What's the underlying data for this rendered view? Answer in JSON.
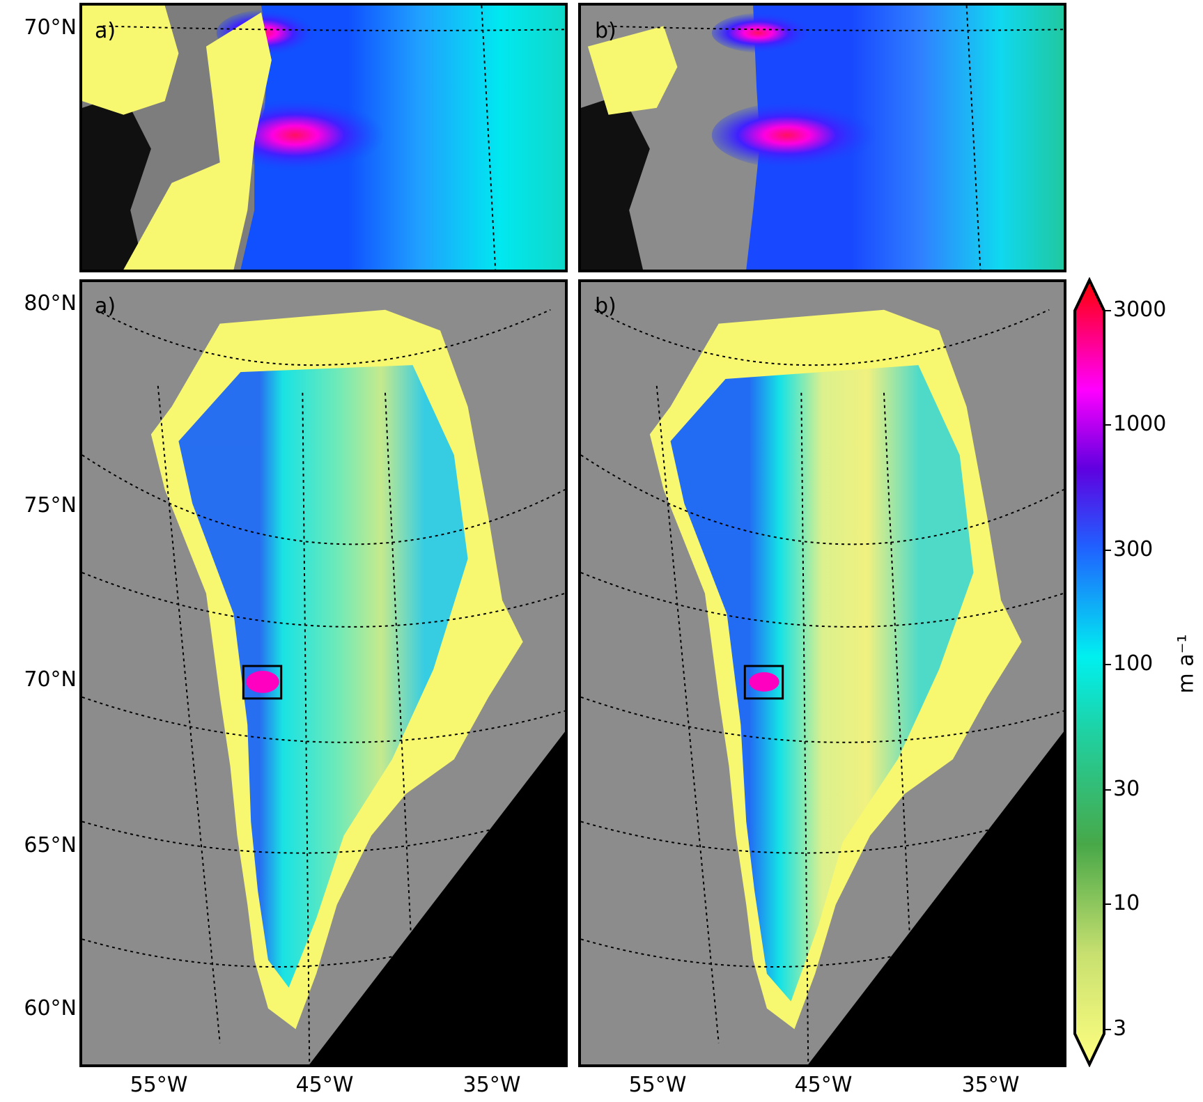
{
  "panels": {
    "top_a": {
      "label": "a)",
      "lat_label": "70°N"
    },
    "top_b": {
      "label": "b)"
    },
    "bottom_a": {
      "label": "a)"
    },
    "bottom_b": {
      "label": "b)"
    }
  },
  "lat_labels": [
    "80°N",
    "75°N",
    "70°N",
    "65°N",
    "60°N"
  ],
  "lon_labels_a": [
    "55°W",
    "45°W",
    "35°W"
  ],
  "lon_labels_b": [
    "55°W",
    "45°W",
    "35°W"
  ],
  "colorbar": {
    "ticks": [
      "3000",
      "1000",
      "300",
      "100",
      "30",
      "10",
      "3"
    ],
    "unit": "m a⁻¹",
    "scale": "log",
    "range": [
      3,
      3000
    ],
    "colors": [
      "#ffff80",
      "#48a848",
      "#20d0a0",
      "#00f0f0",
      "#2060ff",
      "#6000e0",
      "#ff00ff",
      "#ff0000"
    ]
  },
  "colors": {
    "ice_slow": "#ffff80",
    "ice_mid": "#00e8e8",
    "ice_fast": "#0040ff",
    "ice_fastest": "#ff00c0",
    "rock": "#8a8a8a",
    "ocean": "#000000"
  }
}
